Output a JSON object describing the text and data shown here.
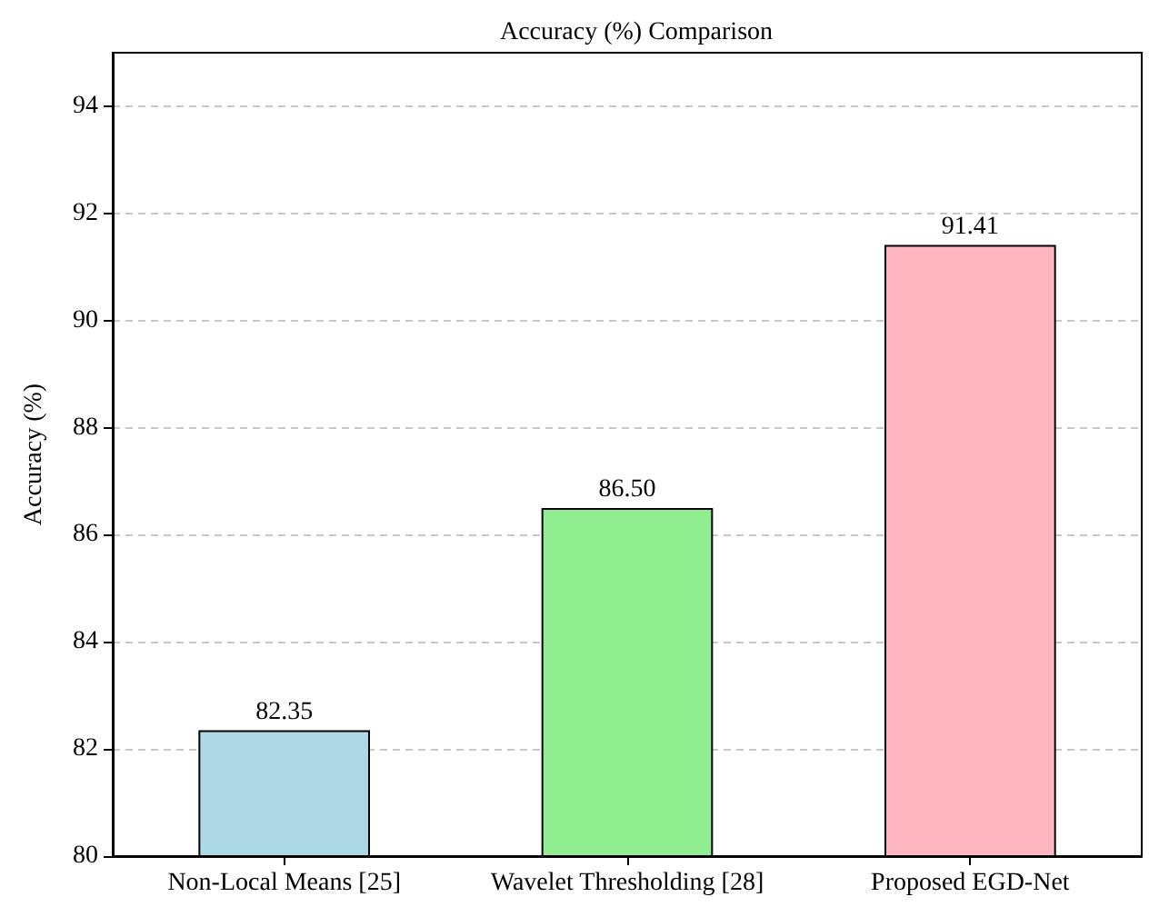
{
  "chart_data": {
    "type": "bar",
    "title": "Accuracy (%) Comparison",
    "ylabel": "Accuracy (%)",
    "categories": [
      "Non-Local Means [25]",
      "Wavelet Thresholding [28]",
      "Proposed EGD-Net"
    ],
    "values": [
      82.35,
      86.5,
      91.41
    ],
    "colors": [
      "#add8e6",
      "#90ee90",
      "#ffb6c1"
    ],
    "value_labels": [
      "82.35",
      "86.50",
      "91.41"
    ],
    "ylim": [
      80,
      95
    ],
    "yticks": [
      80,
      82,
      84,
      86,
      88,
      90,
      92,
      94
    ],
    "grid": "y"
  }
}
